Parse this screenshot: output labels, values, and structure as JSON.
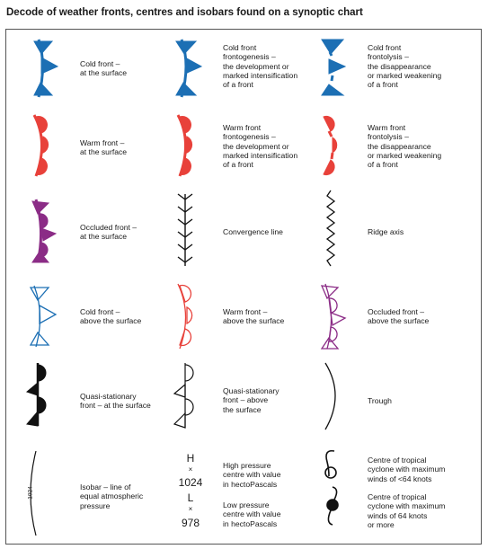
{
  "title": "Decode of weather fronts, centres and isobars found on a synoptic chart",
  "colors": {
    "cold": "#1c6fb4",
    "warm": "#e8413a",
    "occluded": "#8b2c86",
    "black": "#111111"
  },
  "rows": [
    {
      "c1": "Cold front –\nat the surface",
      "c2": "Cold front\nfrontogenesis –\nthe development or\nmarked intensification\nof a front",
      "c3": "Cold front\nfrontolysis –\nthe disappearance\nor marked weakening\nof a front"
    },
    {
      "c1": "Warm front –\nat the surface",
      "c2": "Warm front\nfrontogenesis –\nthe development or\nmarked intensification\nof a front",
      "c3": "Warm front\nfrontolysis –\nthe disappearance\nor marked weakening\nof a front"
    },
    {
      "c1": "Occluded front –\nat the surface",
      "c2": "Convergence line",
      "c3": "Ridge axis"
    },
    {
      "c1": "Cold front –\nabove the surface",
      "c2": "Warm front –\nabove the surface",
      "c3": "Occluded front –\nabove the surface"
    },
    {
      "c1": "Quasi-stationary\nfront – at the surface",
      "c2": "Quasi-stationary\nfront – above\nthe surface",
      "c3": "Trough"
    },
    {
      "c1": "Isobar – line of\nequal atmospheric\npressure",
      "c2": "High pressure\ncentre with value\nin hectoPascals",
      "c3": "Centre of tropical\ncyclone with maximum\nwinds of <64 knots"
    }
  ],
  "extra": {
    "low_label": "Low pressure\ncentre with value\nin hectoPascals",
    "tc_strong_label": "Centre of tropical\ncyclone with maximum\nwinds of 64 knots\nor more",
    "isobar_value": "1024",
    "high_letter": "H",
    "high_value": "1024",
    "low_letter": "L",
    "low_value": "978",
    "cross": "×"
  }
}
